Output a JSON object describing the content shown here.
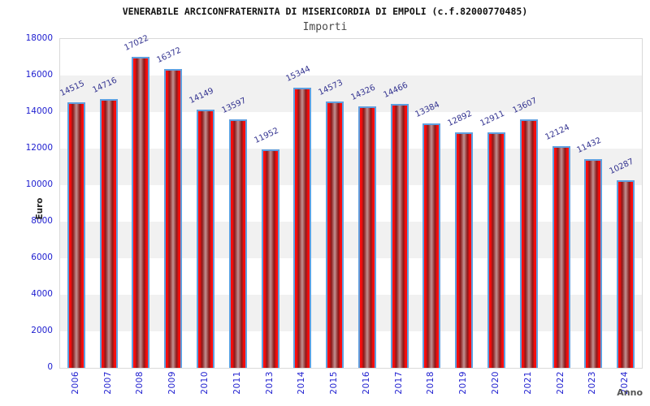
{
  "header": {
    "title": "VENERABILE ARCICONFRATERNITA DI MISERICORDIA DI EMPOLI (c.f.82000770485)",
    "subtitle": "Importi"
  },
  "chart_data": {
    "type": "bar",
    "title": "VENERABILE ARCICONFRATERNITA DI MISERICORDIA DI EMPOLI (c.f.82000770485)",
    "subtitle": "Importi",
    "xlabel": "Anno",
    "ylabel": "Euro",
    "categories": [
      "2006",
      "2007",
      "2008",
      "2009",
      "2010",
      "2011",
      "2013",
      "2014",
      "2015",
      "2016",
      "2017",
      "2018",
      "2019",
      "2020",
      "2021",
      "2022",
      "2023",
      "2024"
    ],
    "values": [
      14515,
      14716,
      17022,
      16372,
      14149,
      13597,
      11952,
      15344,
      14573,
      14326,
      14466,
      13384,
      12892,
      12911,
      13607,
      12124,
      11432,
      10287
    ],
    "ylim": [
      0,
      18000
    ],
    "yticks": [
      0,
      2000,
      4000,
      6000,
      8000,
      10000,
      12000,
      14000,
      16000,
      18000
    ],
    "grid": "alternating horizontal bands every 2000",
    "legend": "none",
    "value_labels": "rotated above bars",
    "colors": {
      "bar_edge_red": "#fb0d0d",
      "bar_dark_red": "#8a1a1a",
      "bar_center": "#c29292",
      "bar_border": "#5f9fdf",
      "axis_tick_label": "#2020d0",
      "value_label": "#333390",
      "band_gray": "#f1f1f1",
      "plot_border": "#d9d9d9"
    }
  }
}
